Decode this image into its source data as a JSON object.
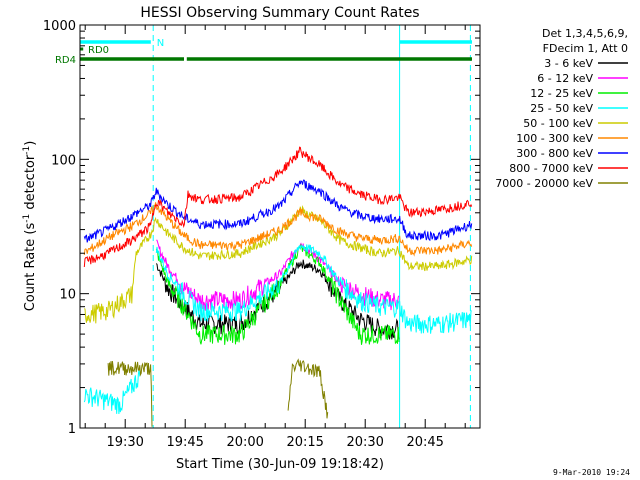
{
  "chart_data": {
    "type": "line",
    "title": "HESSI Observing Summary Count Rates",
    "xlabel": "Start Time (30-Jun-09 19:18:42)",
    "ylabel": "Count Rate (s-1 detector-1)",
    "ylabel_parts": [
      "Count Rate (s",
      "-1",
      " detector",
      "-1",
      ")"
    ],
    "x_unit": "minutes since 19:18:42",
    "xlim": [
      0,
      100
    ],
    "ylim": [
      1,
      1000
    ],
    "yscale": "log",
    "x_ticks": [
      {
        "label": "19:30",
        "value": 11.3
      },
      {
        "label": "19:45",
        "value": 26.3
      },
      {
        "label": "20:00",
        "value": 41.3
      },
      {
        "label": "20:15",
        "value": 56.3
      },
      {
        "label": "20:30",
        "value": 71.3
      },
      {
        "label": "20:45",
        "value": 86.3
      }
    ],
    "y_ticks": [
      {
        "label": "1",
        "value": 1
      },
      {
        "label": "10",
        "value": 10
      },
      {
        "label": "100",
        "value": 100
      },
      {
        "label": "1000",
        "value": 1000
      }
    ],
    "legend_header": [
      "Det 1,3,4,5,6,9,",
      "FDecim 1, Att 0"
    ],
    "legend_position": "right",
    "series": [
      {
        "name": "3 - 6 keV",
        "color": "#000000",
        "x": [
          0,
          10,
          15,
          17.7,
          19,
          22,
          26,
          30,
          40,
          50,
          55,
          60,
          65,
          70,
          75,
          79.9,
          82,
          90,
          98
        ],
        "y": [
          null,
          null,
          null,
          null,
          17,
          11,
          8,
          6,
          6,
          11,
          17,
          15,
          9,
          6.5,
          5.5,
          5.5,
          null,
          null,
          null
        ]
      },
      {
        "name": "6 - 12 keV",
        "color": "#ff00ff",
        "x": [
          0,
          10,
          15,
          17.7,
          19,
          22,
          26,
          30,
          40,
          50,
          55,
          60,
          65,
          70,
          75,
          79.9,
          82,
          90,
          98
        ],
        "y": [
          null,
          null,
          null,
          null,
          24,
          16,
          11,
          9,
          9,
          14,
          24,
          18,
          12,
          10,
          9,
          9,
          null,
          null,
          null
        ]
      },
      {
        "name": "12 - 25 keV",
        "color": "#00ee00",
        "x": [
          0,
          10,
          15,
          17.7,
          19,
          22,
          26,
          30,
          40,
          50,
          55,
          60,
          65,
          70,
          75,
          79.9,
          82,
          90,
          98
        ],
        "y": [
          null,
          null,
          null,
          null,
          21,
          12,
          8,
          5,
          5,
          12,
          22,
          17,
          9,
          5,
          5,
          5,
          null,
          null,
          null
        ]
      },
      {
        "name": "25 - 50 keV",
        "color": "#00ffff",
        "x": [
          0,
          1,
          10,
          15,
          17.7,
          19,
          22,
          26,
          30,
          40,
          50,
          55,
          60,
          65,
          70,
          75,
          79.9,
          82,
          90,
          98
        ],
        "y": [
          null,
          1.8,
          1.5,
          2.5,
          null,
          22,
          14,
          10,
          7.5,
          7.5,
          12,
          23,
          20,
          12,
          9,
          8,
          8,
          6,
          6,
          6.5
        ]
      },
      {
        "name": "50 - 100 keV",
        "color": "#cccc00",
        "x": [
          0,
          1,
          7,
          13,
          14,
          17.7,
          19,
          22,
          26,
          30,
          40,
          50,
          55,
          60,
          65,
          70,
          75,
          79.9,
          82,
          90,
          98
        ],
        "y": [
          null,
          7,
          7.5,
          10,
          20,
          28,
          36,
          28,
          22,
          19,
          20,
          28,
          42,
          35,
          25,
          22,
          20,
          21,
          16,
          16,
          18
        ]
      },
      {
        "name": "100 - 300 keV",
        "color": "#ff8800",
        "x": [
          0,
          1,
          7,
          13,
          17.7,
          19,
          22,
          26,
          30,
          40,
          50,
          55,
          60,
          65,
          70,
          75,
          79.9,
          82,
          90,
          98
        ],
        "y": [
          null,
          20,
          26,
          32,
          40,
          46,
          36,
          27,
          23,
          23,
          30,
          40,
          36,
          29,
          26,
          25,
          26,
          21,
          21,
          24
        ]
      },
      {
        "name": "300 - 800 keV",
        "color": "#0000ff",
        "x": [
          0,
          1,
          7,
          13,
          17.7,
          19,
          22,
          26,
          30,
          40,
          50,
          55,
          60,
          65,
          70,
          75,
          79.9,
          82,
          90,
          98
        ],
        "y": [
          null,
          25,
          30,
          38,
          46,
          58,
          46,
          37,
          33,
          33,
          45,
          68,
          58,
          44,
          38,
          36,
          36,
          27,
          27,
          33
        ]
      },
      {
        "name": "800 - 7000 keV",
        "color": "#ff0000",
        "x": [
          0,
          1,
          7,
          13,
          17.7,
          19,
          22,
          26,
          27,
          30,
          40,
          50,
          55,
          60,
          65,
          70,
          75,
          79.9,
          82,
          90,
          98
        ],
        "y": [
          null,
          17,
          20,
          25,
          32,
          50,
          40,
          33,
          55,
          50,
          52,
          80,
          115,
          90,
          65,
          55,
          50,
          52,
          40,
          42,
          48
        ]
      },
      {
        "name": "7000 - 20000 keV",
        "color": "#808000",
        "x": [
          0,
          6,
          7,
          17.7,
          18,
          26,
          50,
          52,
          53,
          55,
          60,
          62,
          65,
          66,
          98
        ],
        "y": [
          null,
          null,
          2.8,
          2.8,
          1,
          null,
          null,
          1.2,
          2.8,
          3,
          2.6,
          1.2,
          null,
          null,
          null
        ]
      }
    ],
    "state_bars": [
      {
        "label": "N",
        "color": "#00ffff",
        "segments": [
          [
            0,
            17.7
          ],
          [
            80,
            98
          ]
        ]
      },
      {
        "label": "RD0",
        "color": "#007700",
        "segments": [
          [
            0,
            0.8
          ]
        ]
      },
      {
        "label": "RD4",
        "color": "#007700",
        "segments": [
          [
            0,
            26
          ],
          [
            26.7,
            98
          ]
        ]
      }
    ],
    "vertical_markers": [
      {
        "x": 0,
        "color": "#00ffff",
        "style": "solid"
      },
      {
        "x": 18.3,
        "color": "#00ffff",
        "style": "dashed"
      },
      {
        "x": 79.9,
        "color": "#00ffff",
        "style": "solid"
      },
      {
        "x": 97.6,
        "color": "#00ffff",
        "style": "dashed"
      }
    ]
  },
  "footer": {
    "timestamp": "9-Mar-2010 19:24"
  }
}
